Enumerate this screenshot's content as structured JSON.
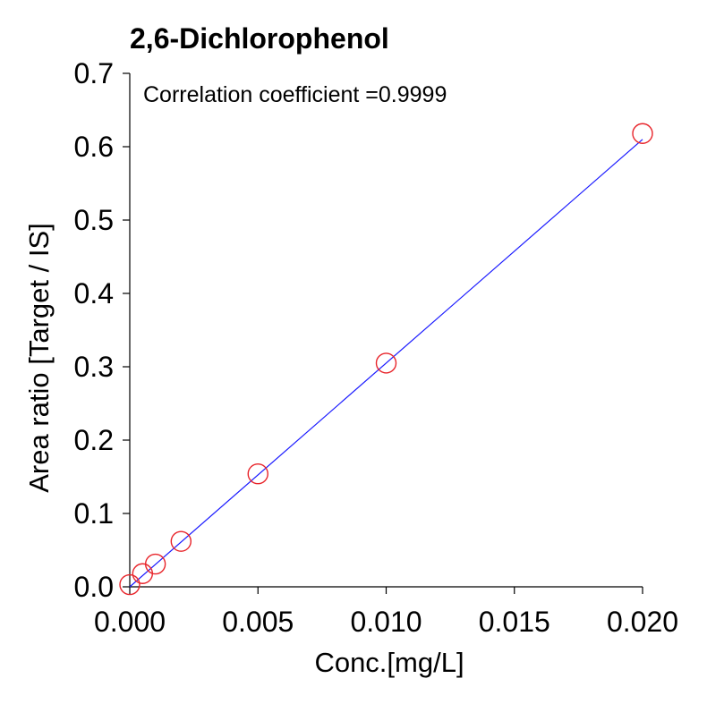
{
  "chart_data": {
    "type": "scatter",
    "title": "2,6-Dichlorophenol",
    "xlabel": "Conc.[mg/L]",
    "ylabel": "Area ratio [Target / IS]",
    "annotation": "Correlation coefficient =0.9999",
    "xlim": [
      0,
      0.02
    ],
    "ylim": [
      0,
      0.7
    ],
    "x_ticks": [
      "0.000",
      "0.005",
      "0.010",
      "0.015",
      "0.020"
    ],
    "y_ticks": [
      "0.0",
      "0.1",
      "0.2",
      "0.3",
      "0.4",
      "0.5",
      "0.6",
      "0.7"
    ],
    "grid": false,
    "series": [
      {
        "marker": "open-circle",
        "color": "#e8242a",
        "points": [
          {
            "x": 0.0,
            "y": 0.003
          },
          {
            "x": 0.0005,
            "y": 0.018
          },
          {
            "x": 0.001,
            "y": 0.031
          },
          {
            "x": 0.002,
            "y": 0.062
          },
          {
            "x": 0.005,
            "y": 0.154
          },
          {
            "x": 0.01,
            "y": 0.305
          },
          {
            "x": 0.02,
            "y": 0.618
          }
        ]
      }
    ],
    "fit_line": {
      "color": "#1a1aff",
      "from": {
        "x": 0.0,
        "y": 0.0
      },
      "to": {
        "x": 0.02,
        "y": 0.61
      }
    }
  }
}
